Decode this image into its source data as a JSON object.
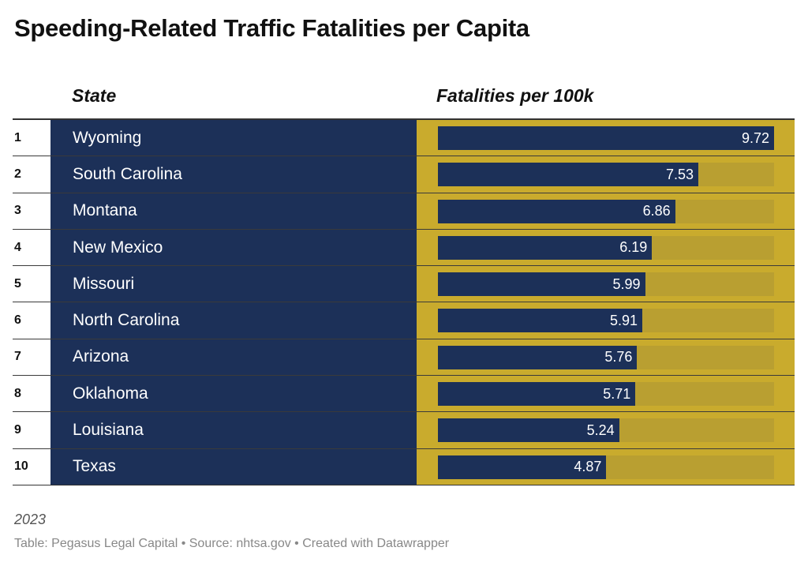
{
  "chart_data": {
    "type": "table",
    "title": "Speeding-Related Traffic Fatalities per Capita",
    "columns": {
      "state": "State",
      "value": "Fatalities per 100k"
    },
    "max_value": 9.72,
    "rows": [
      {
        "rank": "1",
        "state": "Wyoming",
        "value": 9.72,
        "label": "9.72"
      },
      {
        "rank": "2",
        "state": "South Carolina",
        "value": 7.53,
        "label": "7.53"
      },
      {
        "rank": "3",
        "state": "Montana",
        "value": 6.86,
        "label": "6.86"
      },
      {
        "rank": "4",
        "state": "New Mexico",
        "value": 6.19,
        "label": "6.19"
      },
      {
        "rank": "5",
        "state": "Missouri",
        "value": 5.99,
        "label": "5.99"
      },
      {
        "rank": "6",
        "state": "North Carolina",
        "value": 5.91,
        "label": "5.91"
      },
      {
        "rank": "7",
        "state": "Arizona",
        "value": 5.76,
        "label": "5.76"
      },
      {
        "rank": "8",
        "state": "Oklahoma",
        "value": 5.71,
        "label": "5.71"
      },
      {
        "rank": "9",
        "state": "Louisiana",
        "value": 5.24,
        "label": "5.24"
      },
      {
        "rank": "10",
        "state": "Texas",
        "value": 4.87,
        "label": "4.87"
      }
    ],
    "note": "2023",
    "footer": "Table: Pegasus Legal Capital • Source: nhtsa.gov • Created with Datawrapper"
  },
  "colors": {
    "navy": "#1c3058",
    "gold": "#c9ab2d",
    "track": "#b99f31"
  }
}
